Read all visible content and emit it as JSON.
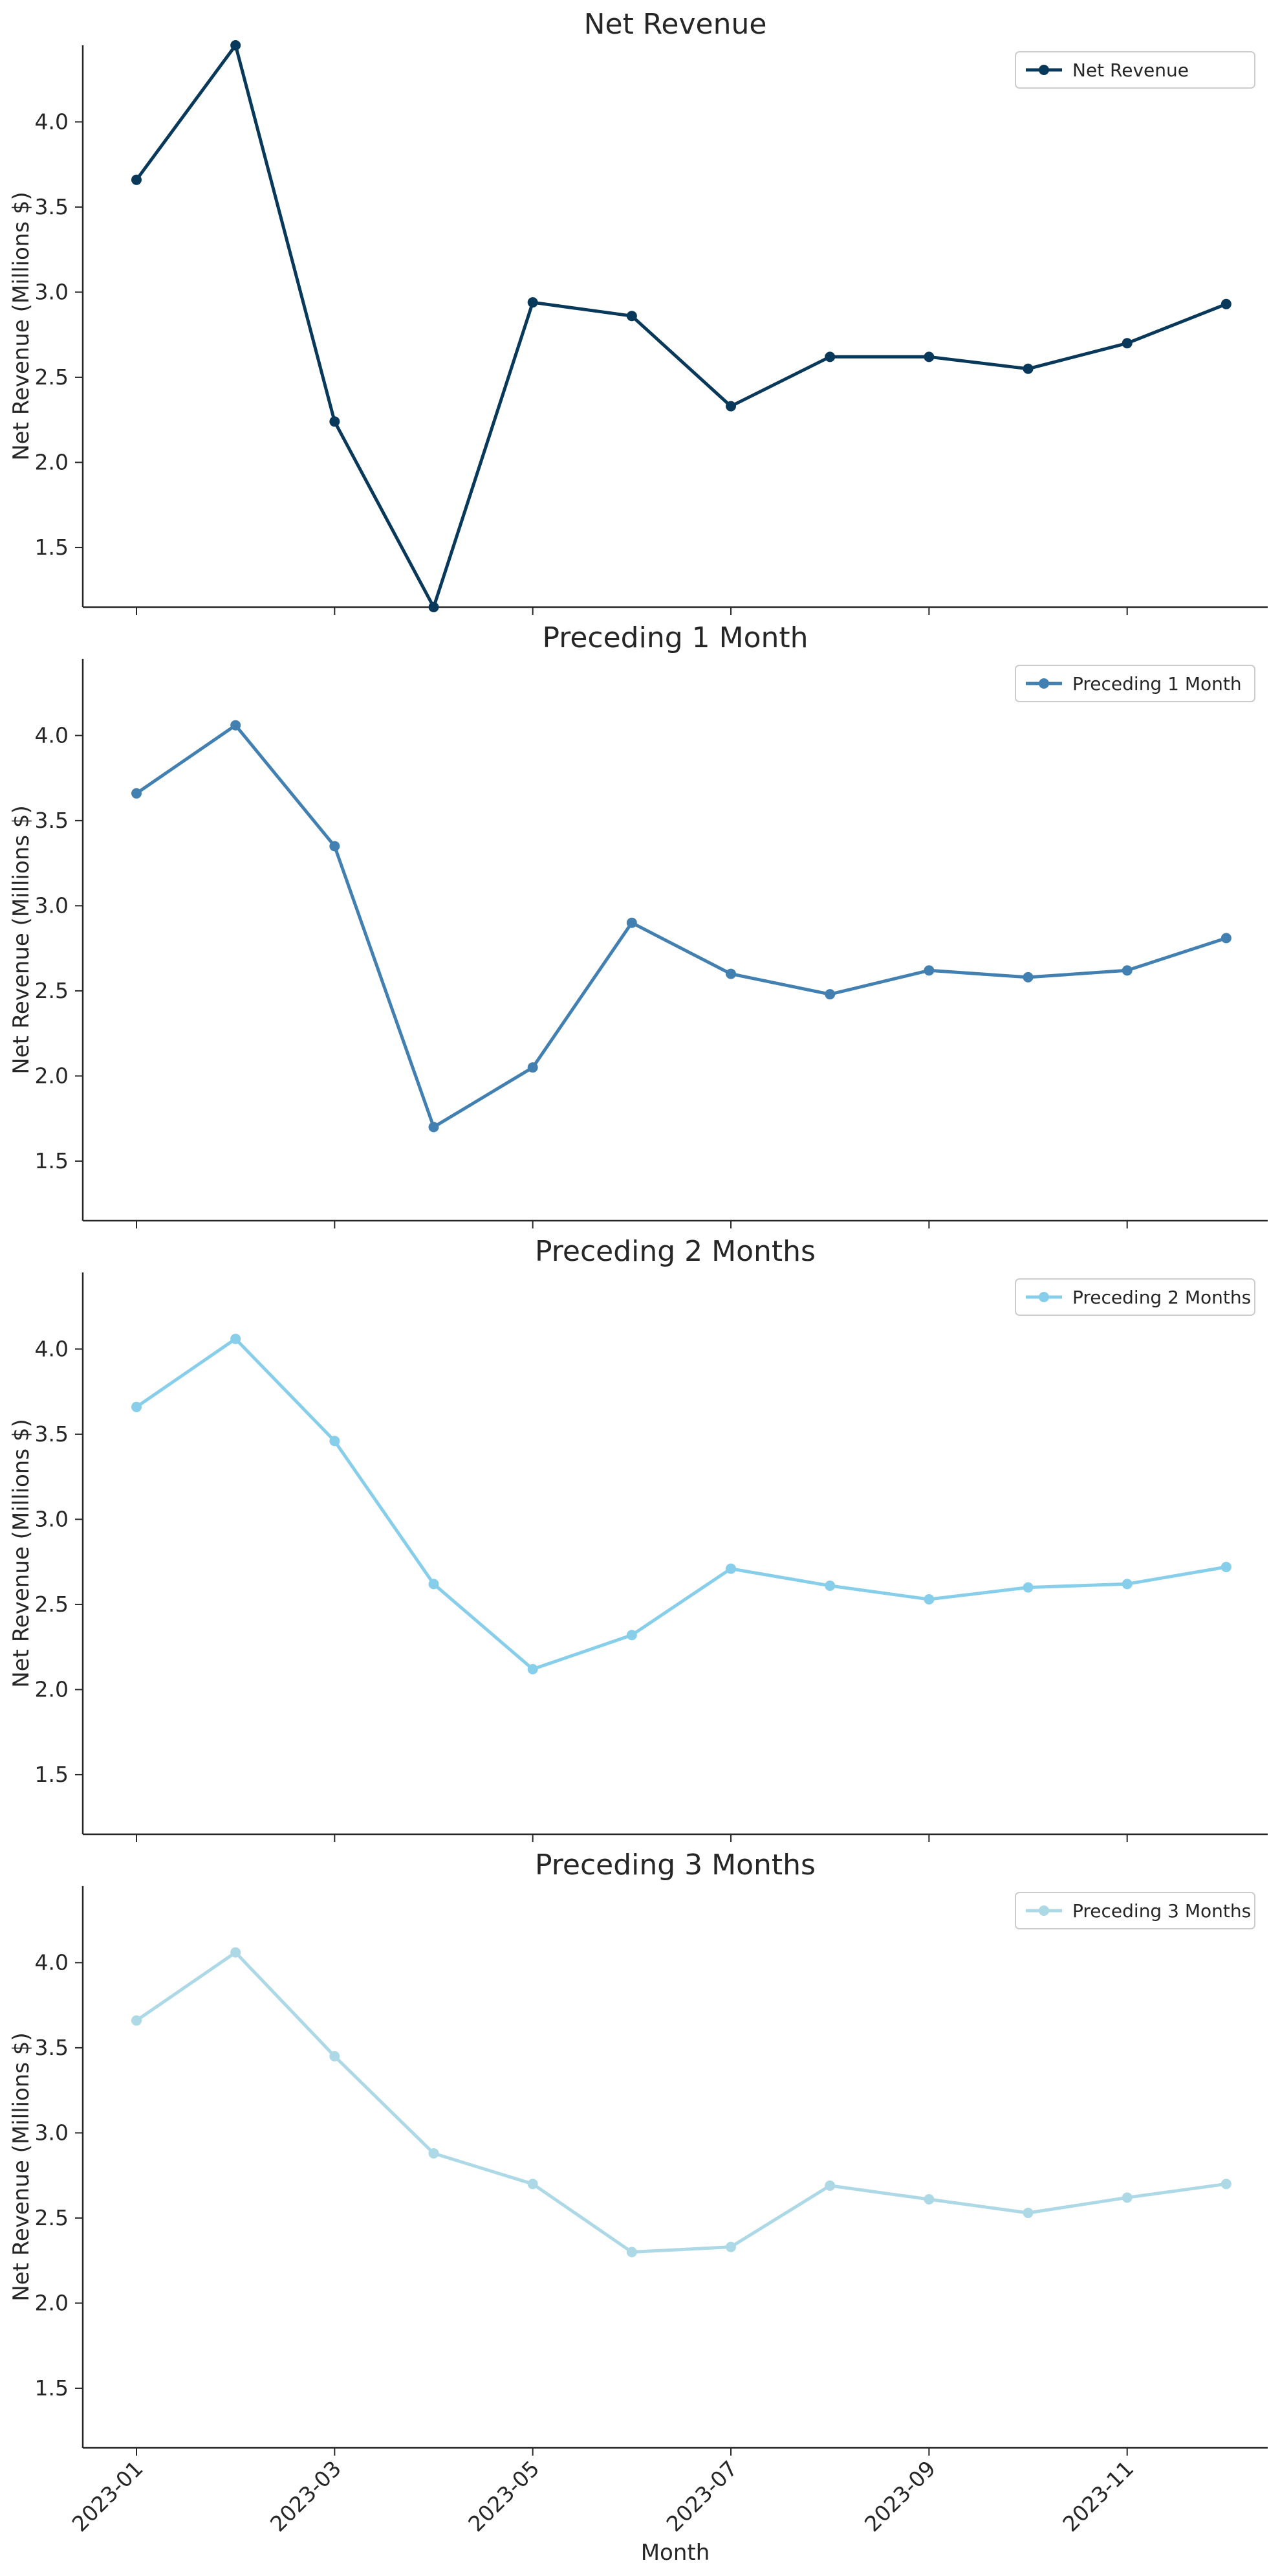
{
  "chart_data": {
    "type": "line",
    "xlabel": "Month",
    "ylabel": "Net Revenue (Millions $)",
    "ylim": [
      1.15,
      4.45
    ],
    "yticks": [
      1.5,
      2.0,
      2.5,
      3.0,
      3.5,
      4.0
    ],
    "ytick_labels": [
      "1.5",
      "2.0",
      "2.5",
      "3.0",
      "3.5",
      "4.0"
    ],
    "months": [
      "2023-01",
      "2023-02",
      "2023-03",
      "2023-04",
      "2023-05",
      "2023-06",
      "2023-07",
      "2023-08",
      "2023-09",
      "2023-10",
      "2023-11",
      "2023-12"
    ],
    "xtick_months": [
      "2023-01",
      "2023-03",
      "2023-05",
      "2023-07",
      "2023-09",
      "2023-11"
    ],
    "grid": false,
    "legend_placement": "top-right",
    "shared_x": true,
    "panels": [
      {
        "title": "Net Revenue",
        "series": [
          {
            "name": "Net Revenue",
            "color": "#08385a",
            "values": [
              3.66,
              4.45,
              2.24,
              1.15,
              2.94,
              2.86,
              2.33,
              2.62,
              2.62,
              2.55,
              2.7,
              2.93
            ]
          }
        ]
      },
      {
        "title": "Preceding 1 Month",
        "series": [
          {
            "name": "Preceding 1 Month",
            "color": "#4280b2",
            "values": [
              3.66,
              4.06,
              3.35,
              1.7,
              2.05,
              2.9,
              2.6,
              2.48,
              2.62,
              2.58,
              2.62,
              2.81
            ]
          }
        ]
      },
      {
        "title": "Preceding 2 Months",
        "series": [
          {
            "name": "Preceding 2 Months",
            "color": "#87ceeb",
            "values": [
              3.66,
              4.06,
              3.46,
              2.62,
              2.12,
              2.32,
              2.71,
              2.61,
              2.53,
              2.6,
              2.62,
              2.72
            ]
          }
        ]
      },
      {
        "title": "Preceding 3 Months",
        "series": [
          {
            "name": "Preceding 3 Months",
            "color": "#add8e6",
            "values": [
              3.66,
              4.06,
              3.45,
              2.88,
              2.7,
              2.3,
              2.33,
              2.69,
              2.61,
              2.53,
              2.62,
              2.7
            ]
          }
        ]
      }
    ]
  }
}
